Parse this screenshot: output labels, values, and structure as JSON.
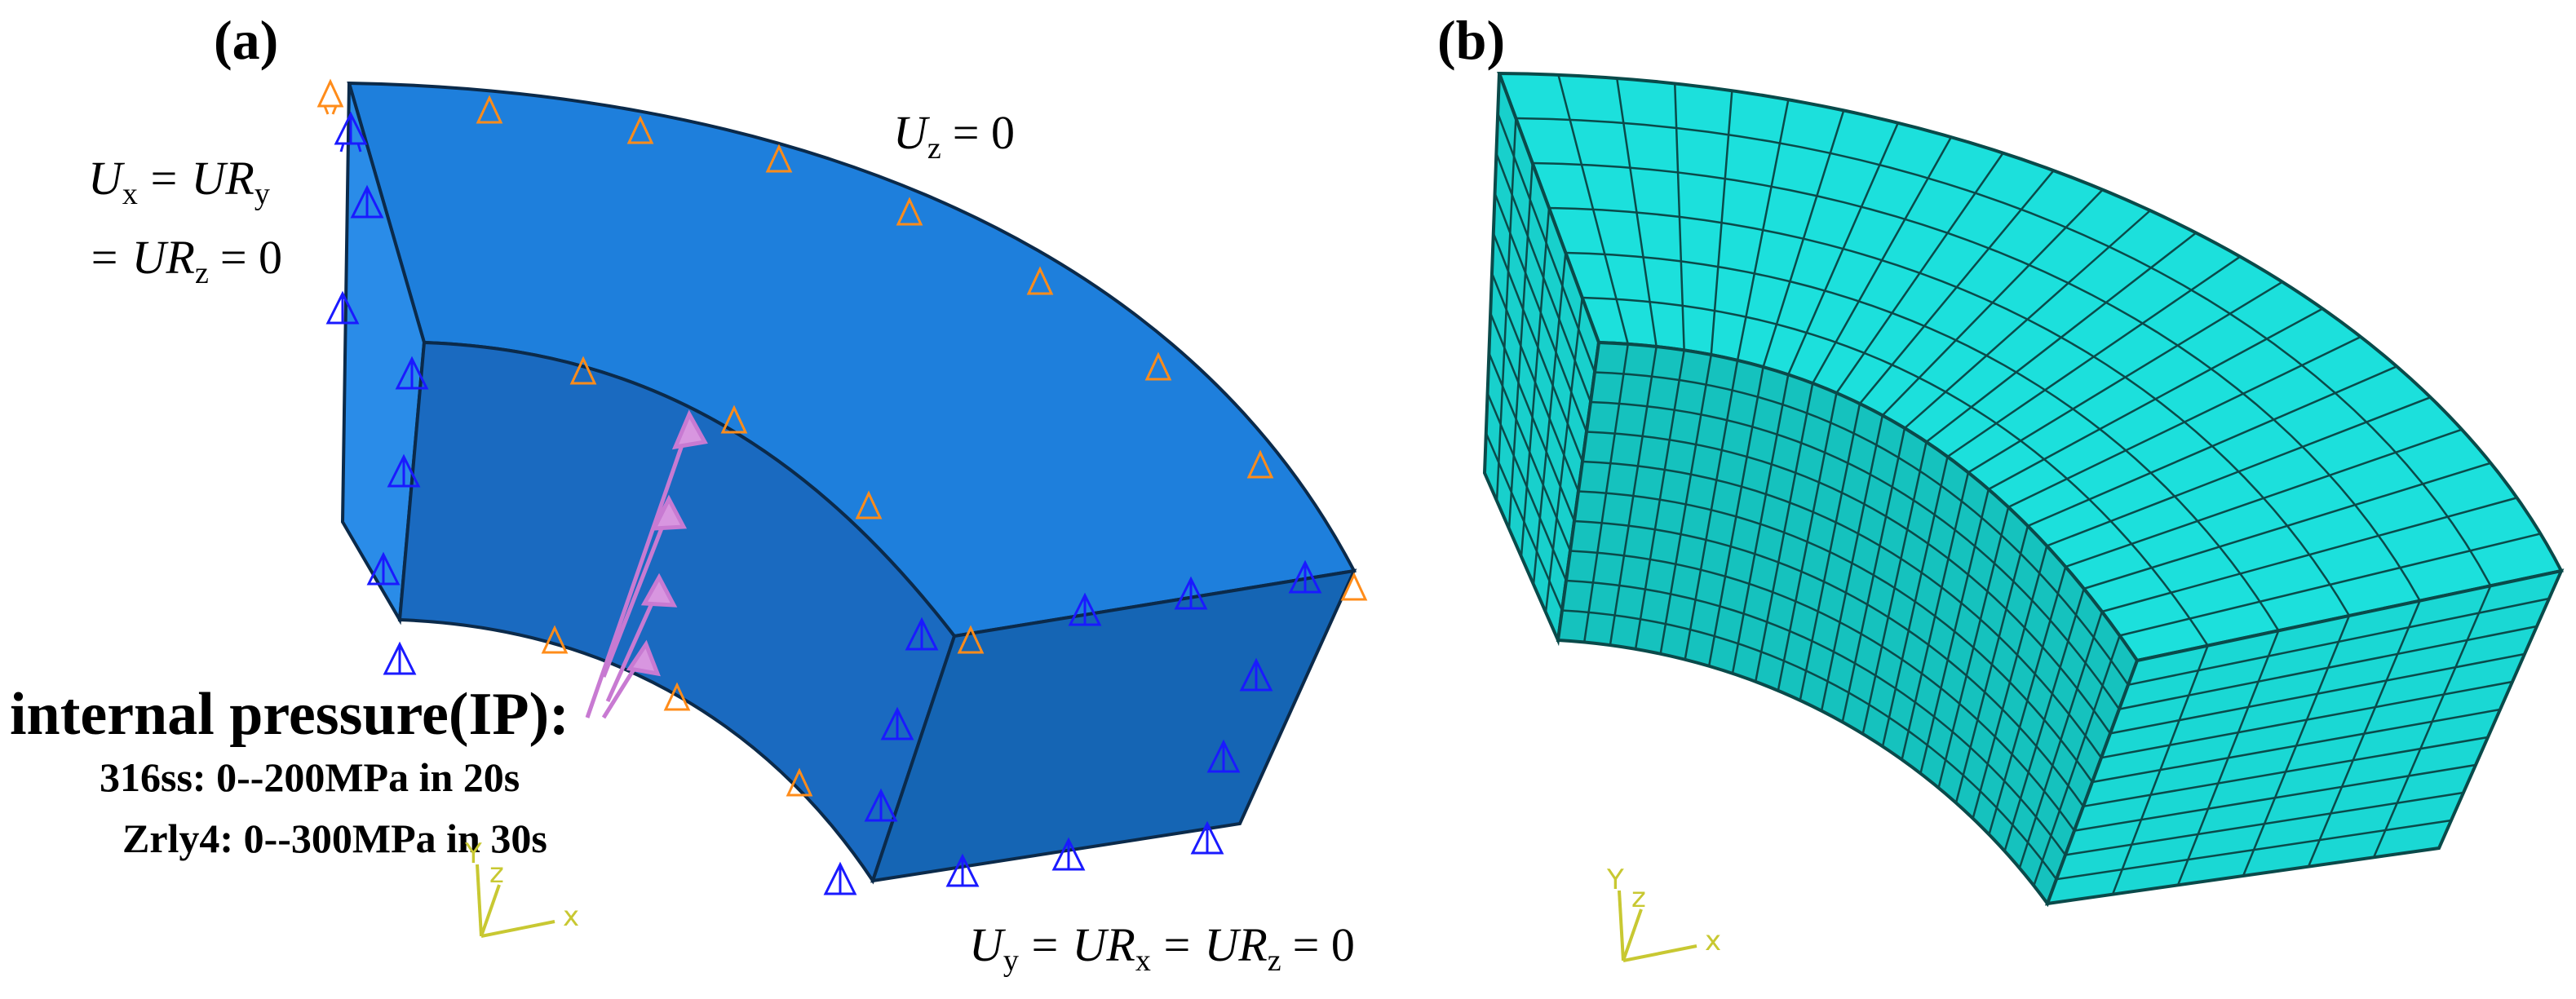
{
  "panels": {
    "a": {
      "label": "(a)",
      "bc_top": {
        "main": "U",
        "sub": "z",
        "rest": "= 0"
      },
      "bc_left": {
        "line1": {
          "u": "U",
          "u_sub": "x",
          "eq": "= UR",
          "ur_sub": "y"
        },
        "line2": {
          "eq": "= UR",
          "ur_sub": "z",
          "rest": "= 0"
        }
      },
      "bc_bottom": {
        "u": "U",
        "u_sub": "y",
        "eq1": "= UR",
        "s1": "x",
        "eq2": "= UR",
        "s2": "z",
        "rest": "= 0"
      },
      "internal_pressure": {
        "title": "internal pressure(IP):",
        "line1": "316ss: 0--200MPa in 20s",
        "line2": "Zrly4: 0--300MPa in 30s"
      },
      "axes": {
        "x": "x",
        "y": "Y",
        "z": "z"
      }
    },
    "b": {
      "label": "(b)",
      "axes": {
        "x": "x",
        "y": "Y",
        "z": "z"
      },
      "mesh": {
        "radial_divisions": 6,
        "circumferential_divisions": 24,
        "axial_divisions": 10
      }
    }
  },
  "colors": {
    "part_top": "#1e7fdc",
    "part_side": "#1565b4",
    "part_inner": "#1a5fa6",
    "mesh_face": "#1ce0dc",
    "mesh_line": "#0a4a4a",
    "bc_marker": "#ff8c1a",
    "bc_marker_blue": "#1a1aff",
    "pressure_arrow": "#c87ad2",
    "triad": "#c8c832"
  }
}
